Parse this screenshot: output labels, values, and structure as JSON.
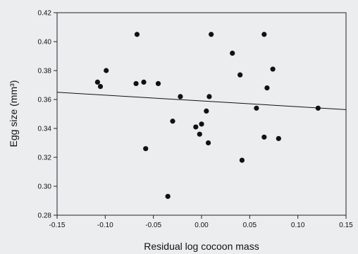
{
  "chart_data": {
    "type": "scatter",
    "title": "",
    "xlabel": "Residual log cocoon mass",
    "ylabel": "Egg size (mm³)",
    "xlim": [
      -0.15,
      0.15
    ],
    "ylim": [
      0.28,
      0.42
    ],
    "x_ticks": [
      "-0.15",
      "-0.10",
      "-0.05",
      "0.00",
      "0.05",
      "0.10",
      "0.15"
    ],
    "y_ticks": [
      "0.28",
      "0.30",
      "0.32",
      "0.34",
      "0.36",
      "0.38",
      "0.40",
      "0.42"
    ],
    "grid": false,
    "legend": "none",
    "points": [
      {
        "x": -0.108,
        "y": 0.372
      },
      {
        "x": -0.105,
        "y": 0.369
      },
      {
        "x": -0.099,
        "y": 0.38
      },
      {
        "x": -0.067,
        "y": 0.405
      },
      {
        "x": -0.068,
        "y": 0.371
      },
      {
        "x": -0.06,
        "y": 0.372
      },
      {
        "x": -0.058,
        "y": 0.326
      },
      {
        "x": -0.045,
        "y": 0.371
      },
      {
        "x": -0.035,
        "y": 0.293
      },
      {
        "x": -0.03,
        "y": 0.345
      },
      {
        "x": -0.022,
        "y": 0.362
      },
      {
        "x": -0.006,
        "y": 0.341
      },
      {
        "x": -0.002,
        "y": 0.336
      },
      {
        "x": 0.0,
        "y": 0.343
      },
      {
        "x": 0.005,
        "y": 0.352
      },
      {
        "x": 0.007,
        "y": 0.33
      },
      {
        "x": 0.008,
        "y": 0.362
      },
      {
        "x": 0.01,
        "y": 0.405
      },
      {
        "x": 0.032,
        "y": 0.392
      },
      {
        "x": 0.04,
        "y": 0.377
      },
      {
        "x": 0.042,
        "y": 0.318
      },
      {
        "x": 0.057,
        "y": 0.354
      },
      {
        "x": 0.065,
        "y": 0.405
      },
      {
        "x": 0.065,
        "y": 0.334
      },
      {
        "x": 0.068,
        "y": 0.368
      },
      {
        "x": 0.074,
        "y": 0.381
      },
      {
        "x": 0.08,
        "y": 0.333
      },
      {
        "x": 0.121,
        "y": 0.354
      }
    ],
    "regression_line": {
      "x": [
        -0.15,
        0.15
      ],
      "y": [
        0.365,
        0.353
      ]
    },
    "colors": {
      "points": "#111111",
      "line": "#111111",
      "background": "#ecedef"
    }
  }
}
